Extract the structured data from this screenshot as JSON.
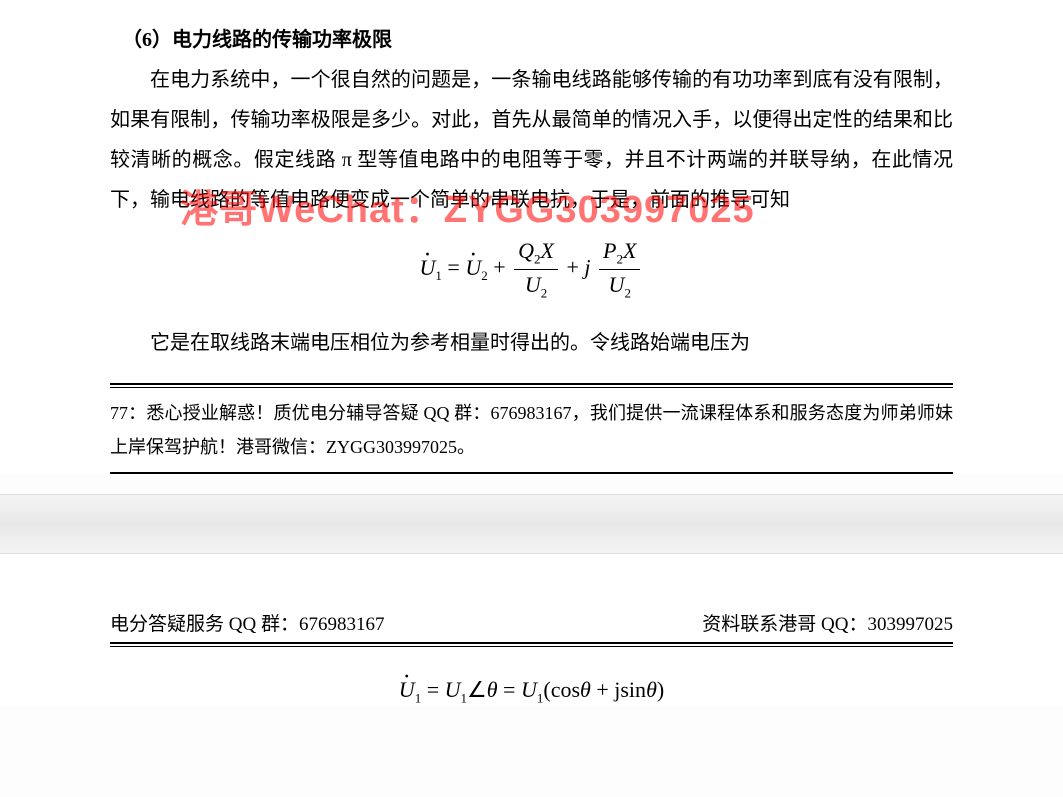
{
  "section": {
    "number": "（6）",
    "title": "电力线路的传输功率极限"
  },
  "paragraph1": "在电力系统中，一个很自然的问题是，一条输电线路能够传输的有功功率到底有没有限制，如果有限制，传输功率极限是多少。对此，首先从最简单的情况入手，以便得出定性的结果和比较清晰的概念。假定线路 π 型等值电路中的电阻等于零，并且不计两端的并联导纳，在此情况下，输电线路的等值电路便变成一个简单的串联电抗，于是，前面的推导可知",
  "watermark": "港哥WeChat：ZYGG303997025",
  "equation1": {
    "lhs_var": "U",
    "lhs_sub": "1",
    "rhs1_var": "U",
    "rhs1_sub": "2",
    "frac1_num_a": "Q",
    "frac1_num_a_sub": "2",
    "frac1_num_b": "X",
    "frac1_den": "U",
    "frac1_den_sub": "2",
    "j": "j",
    "frac2_num_a": "P",
    "frac2_num_a_sub": "2",
    "frac2_num_b": "X",
    "frac2_den": "U",
    "frac2_den_sub": "2"
  },
  "paragraph2": "它是在取线路末端电压相位为参考相量时得出的。令线路始端电压为",
  "footnote": "77：悉心授业解惑！质优电分辅导答疑 QQ 群：676983167，我们提供一流课程体系和服务态度为师弟师妹上岸保驾护航！港哥微信：ZYGG303997025。",
  "header": {
    "left": "电分答疑服务 QQ 群：676983167",
    "right": "资料联系港哥 QQ：303997025"
  },
  "equation2": {
    "var": "U",
    "sub": "1",
    "angle": "∠",
    "theta": "θ",
    "eq": "=",
    "cos": "cos",
    "sin": "sin",
    "j": "j",
    "plus": "+",
    "lp": "(",
    "rp": ")"
  },
  "colors": {
    "text": "#000000",
    "watermark": "rgba(255,0,0,0.55)",
    "background": "#ffffff",
    "page_gap": "#eeeeee"
  },
  "fontsize": {
    "body": 20,
    "footnote": 18,
    "equation": 22,
    "watermark": 38
  }
}
